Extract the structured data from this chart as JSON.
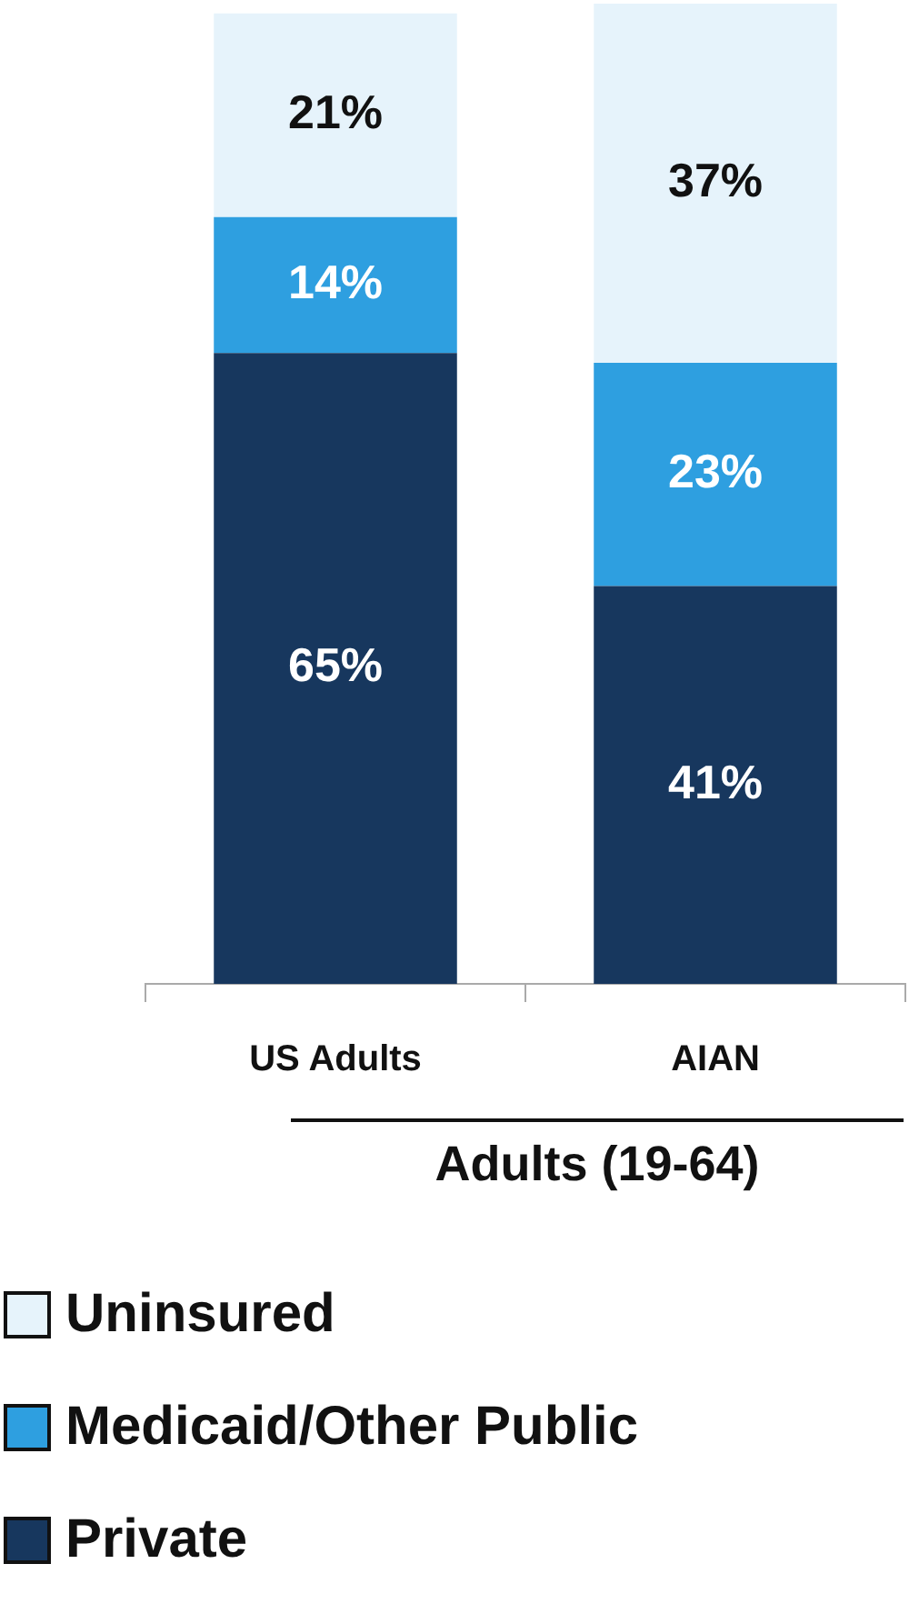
{
  "chart_data": {
    "type": "bar",
    "stacked": true,
    "xlabel": "Adults (19-64)",
    "categories": [
      "US Adults",
      "AIAN"
    ],
    "series": [
      {
        "name": "Private",
        "color": "#17375e",
        "values": [
          65,
          41
        ],
        "value_labels": [
          "65%",
          "41%"
        ]
      },
      {
        "name": "Medicaid/Other Public",
        "color": "#2e9fe0",
        "values": [
          14,
          23
        ],
        "value_labels": [
          "14%",
          "23%"
        ]
      },
      {
        "name": "Uninsured",
        "color": "#e6f3fb",
        "values": [
          21,
          37
        ],
        "value_labels": [
          "21%",
          "37%"
        ]
      }
    ],
    "legend": "bottom",
    "grid": false
  }
}
